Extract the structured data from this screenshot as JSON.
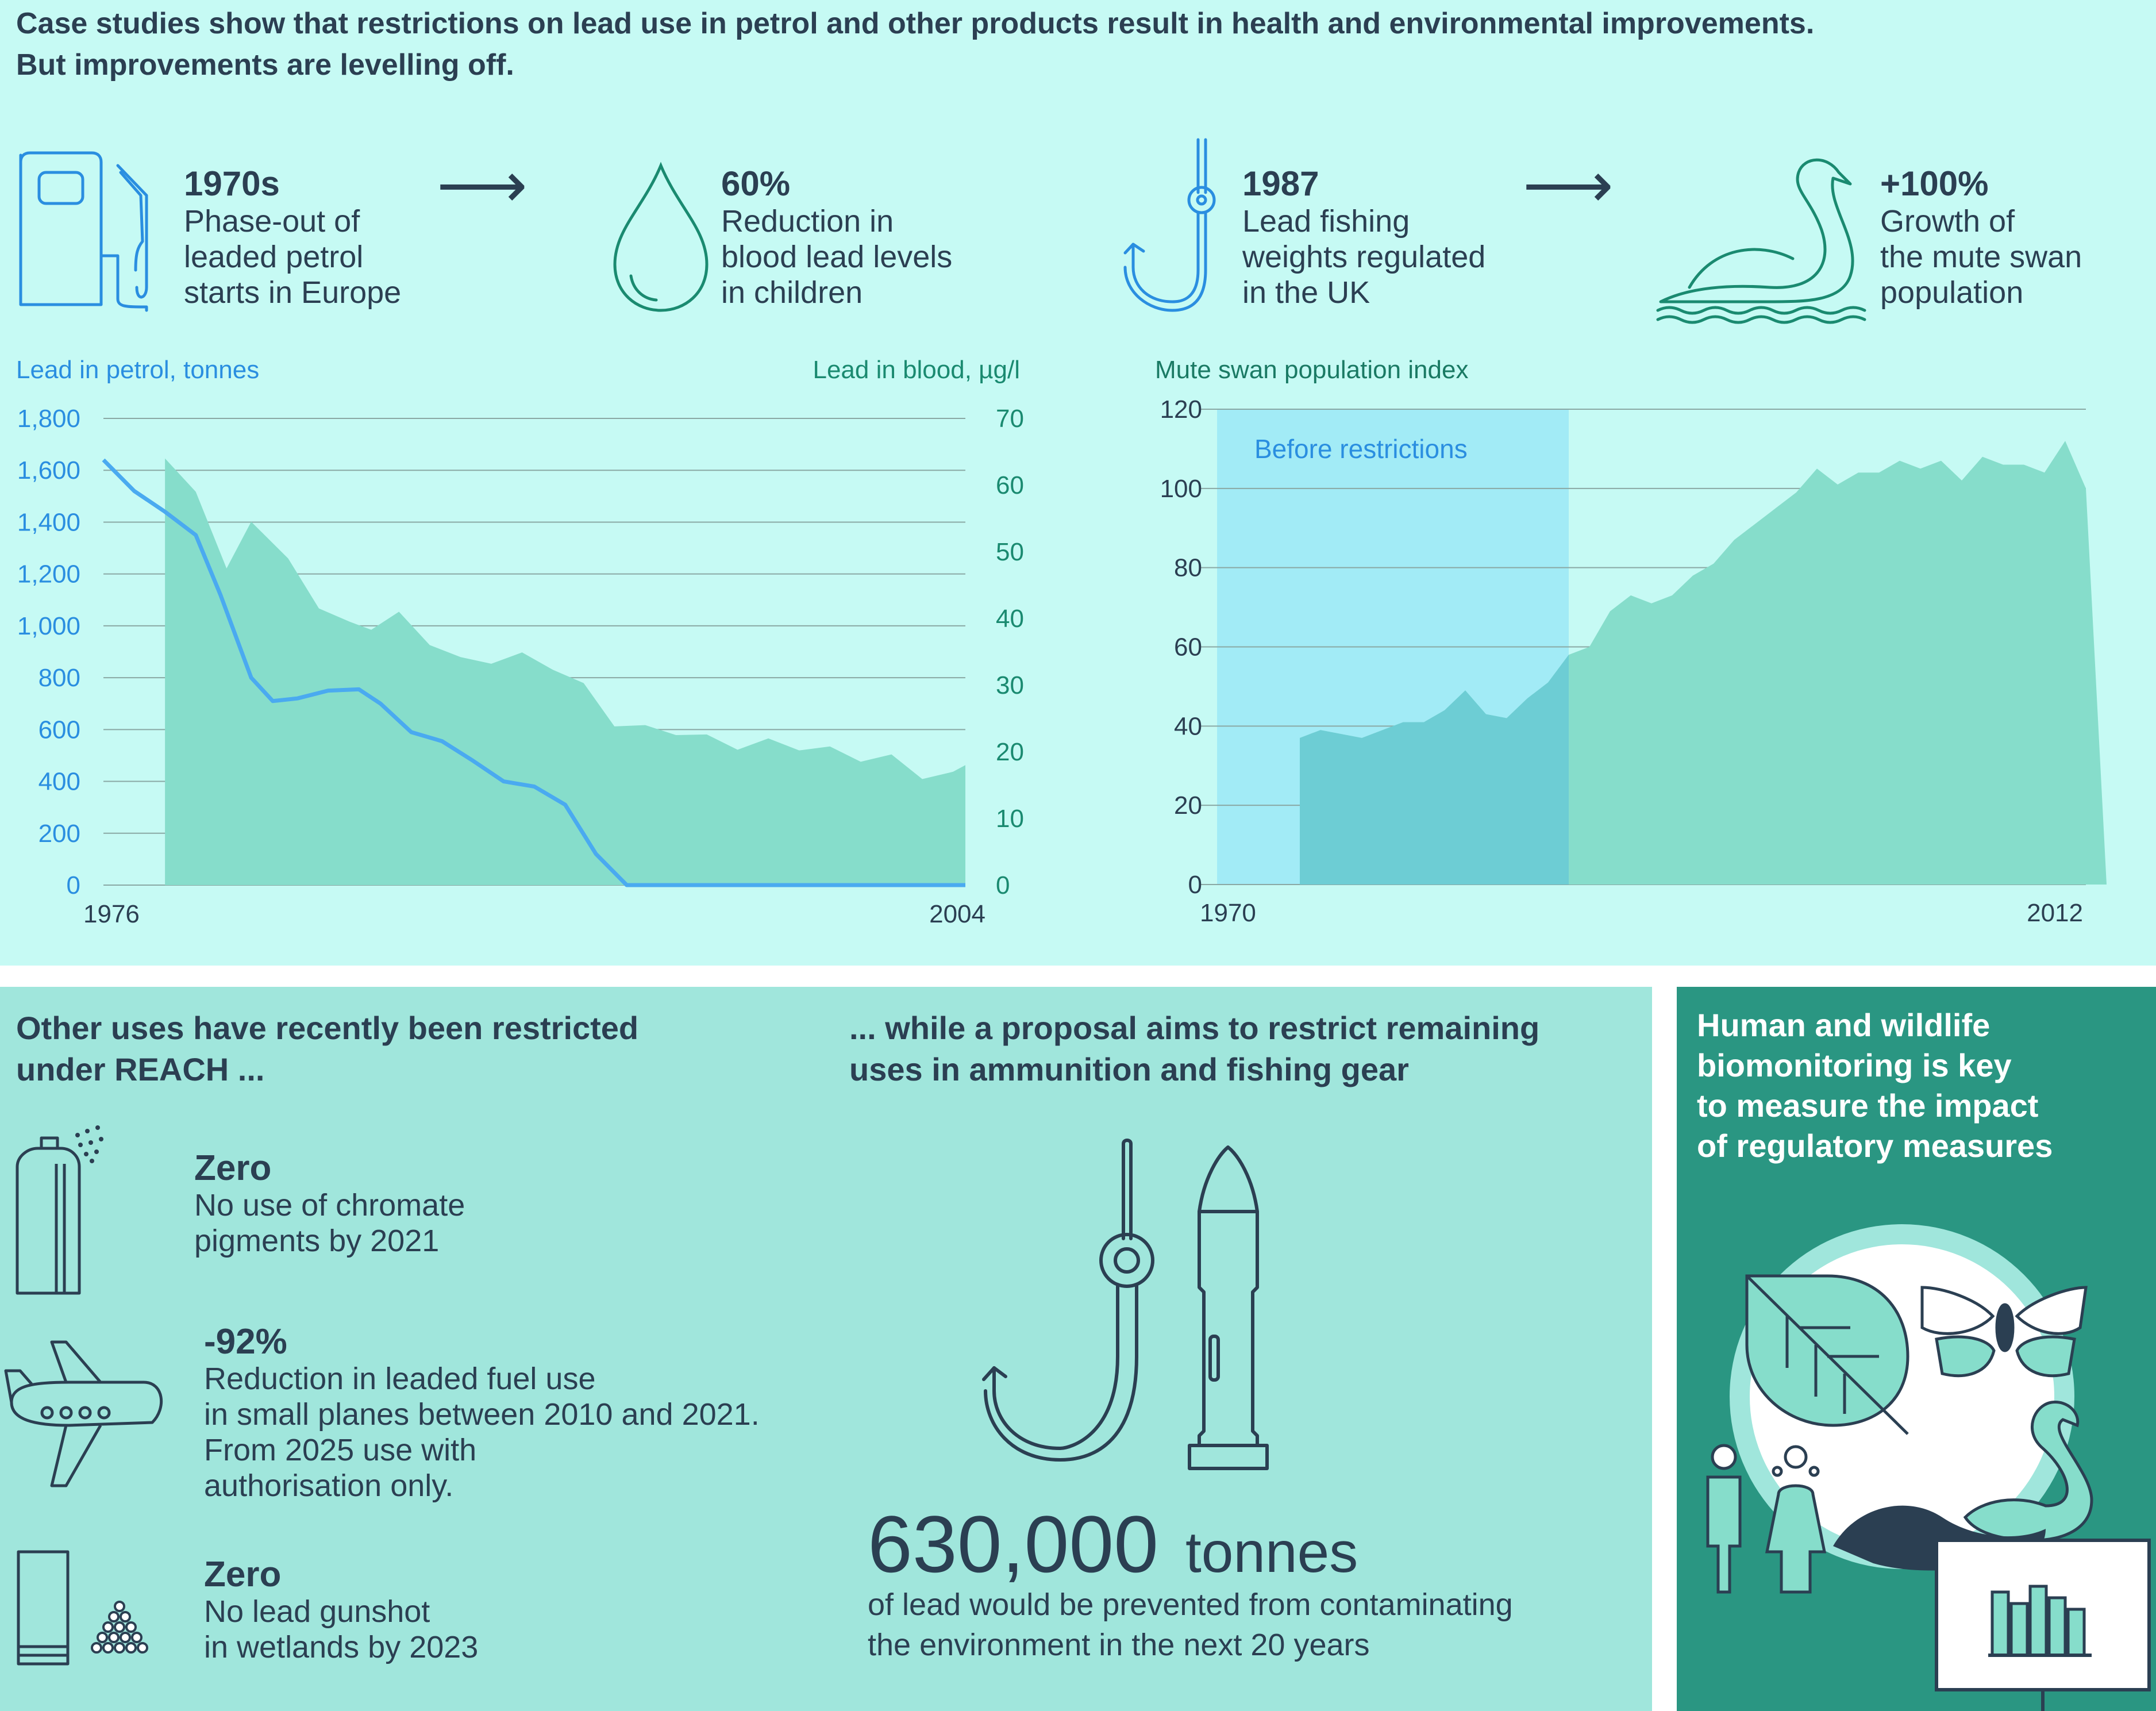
{
  "header": {
    "title_line1": "Case studies show that restrictions on lead use in petrol and other products result in health and environmental improvements.",
    "title_line2": "But improvements are levelling off."
  },
  "facts": [
    {
      "value": "1970s",
      "lines": [
        "Phase-out of",
        "leaded petrol",
        "starts in Europe"
      ],
      "icon": "fuel-pump-icon"
    },
    {
      "value": "60%",
      "lines": [
        "Reduction in",
        "blood lead levels",
        "in children"
      ],
      "icon": "drop-icon"
    },
    {
      "value": "1987",
      "lines": [
        "Lead fishing",
        "weights regulated",
        "in the UK"
      ],
      "icon": "fishing-hook-icon"
    },
    {
      "value": "+100%",
      "lines": [
        "Growth of",
        "the mute swan",
        "population"
      ],
      "icon": "swan-icon"
    }
  ],
  "chart_data": [
    {
      "type": "line",
      "left_axis_label": "Lead in petrol, tonnes",
      "right_axis_label": "Lead in blood, µg/l",
      "x_tick_labels": [
        "1976",
        "2004"
      ],
      "xlim": [
        1976,
        2004
      ],
      "y_left_ticks": [
        "0",
        "200",
        "400",
        "600",
        "800",
        "1,000",
        "1,200",
        "1,400",
        "1,600",
        "1,800"
      ],
      "y_left_lim": [
        0,
        1800
      ],
      "y_right_ticks": [
        "0",
        "10",
        "20",
        "30",
        "40",
        "50",
        "60",
        "70"
      ],
      "y_right_lim": [
        0,
        70
      ],
      "series": [
        {
          "axis": "left",
          "kind": "line",
          "color": "#4aaaf0",
          "x": [
            1976,
            1977,
            1978,
            1979,
            1979.8,
            1980.8,
            1981.5,
            1982.3,
            1983.3,
            1984.3,
            1985,
            1986,
            1987,
            1988,
            1989,
            1990,
            1991,
            1992,
            1993,
            1994,
            1995,
            1996,
            1997,
            1998,
            1999,
            2000,
            2001,
            2002,
            2003,
            2004
          ],
          "values": [
            1640,
            1520,
            1440,
            1350,
            1120,
            800,
            710,
            720,
            750,
            755,
            700,
            590,
            555,
            480,
            400,
            380,
            310,
            120,
            0,
            0,
            0,
            0,
            0,
            0,
            0,
            0,
            0,
            0,
            0,
            0
          ]
        },
        {
          "axis": "right",
          "kind": "area",
          "color": "#86ddcb",
          "x": [
            1978,
            1979,
            1980,
            1980.8,
            1982,
            1983,
            1984,
            1984.7,
            1985.6,
            1986.6,
            1987.6,
            1988.6,
            1989.6,
            1990.6,
            1991.6,
            1992.6,
            1993.6,
            1994.6,
            1995.6,
            1996.6,
            1997.6,
            1998.6,
            1999.6,
            2000.6,
            2001.6,
            2002.6,
            2003.6,
            2004
          ],
          "values": [
            64,
            59,
            47.5,
            54.5,
            49,
            41.5,
            39.5,
            38.3,
            41,
            36,
            34.2,
            33.2,
            34.9,
            32.3,
            30.3,
            23.8,
            24,
            22.5,
            22.6,
            20.3,
            22,
            20.2,
            20.8,
            18.5,
            19.6,
            15.9,
            17,
            18
          ]
        }
      ]
    },
    {
      "type": "area",
      "ylabel": "Mute swan population index",
      "x_tick_labels": [
        "1970",
        "2012"
      ],
      "xlim": [
        1970,
        2012
      ],
      "ylim": [
        0,
        120
      ],
      "y_ticks": [
        "0",
        "20",
        "40",
        "60",
        "80",
        "100",
        "120"
      ],
      "shaded_region": {
        "label": "Before restrictions",
        "x_start": 1970,
        "x_end": 1987
      },
      "series": [
        {
          "color": "#86ddcb",
          "x": [
            1974,
            1975,
            1976,
            1977,
            1978,
            1979,
            1980,
            1981,
            1982,
            1983,
            1984,
            1985,
            1986,
            1987,
            1988,
            1989,
            1990,
            1991,
            1992,
            1993,
            1994,
            1995,
            1996,
            1997,
            1998,
            1999,
            2000,
            2001,
            2002,
            2003,
            2004,
            2005,
            2006,
            2007,
            2008,
            2009,
            2010,
            2011,
            2012,
            2013
          ],
          "values": [
            37,
            39,
            38,
            37,
            39,
            41,
            41,
            44,
            49,
            43,
            42,
            47,
            51,
            58,
            60,
            69,
            73,
            71,
            73,
            78,
            81,
            87,
            91,
            95,
            99,
            105,
            101,
            104,
            104,
            107,
            105,
            107,
            102,
            108,
            106,
            106,
            104,
            112,
            100,
            0
          ]
        }
      ]
    }
  ],
  "reach_section": {
    "heading_line1": "Other uses have recently been restricted",
    "heading_line2": "under REACH ...",
    "items": [
      {
        "value": "Zero",
        "lines": [
          "No use of chromate",
          "pigments by 2021"
        ],
        "icon": "spray-can-icon"
      },
      {
        "value": "-92%",
        "lines": [
          "Reduction in leaded fuel use",
          "in small planes between 2010 and 2021.",
          "From 2025 use with",
          "authorisation only."
        ],
        "icon": "airplane-icon"
      },
      {
        "value": "Zero",
        "lines": [
          "No lead gunshot",
          "in wetlands by 2023"
        ],
        "icon": "gunshot-icon"
      }
    ]
  },
  "proposal_section": {
    "heading_line1": "... while a proposal aims to restrict remaining",
    "heading_line2": "uses in ammunition and fishing gear",
    "big_number": "630,000",
    "big_unit": "tonnes",
    "lines": [
      "of lead would be prevented from contaminating",
      "the environment in the next 20 years"
    ]
  },
  "biomonitoring": {
    "lines": [
      "Human and wildlife",
      "biomonitoring is key",
      "to measure the impact",
      "of regulatory measures"
    ]
  },
  "colors": {
    "top_bg": "#c6faf4",
    "bottom_bg": "#a0e6dc",
    "right_panel_bg": "#2a9682",
    "teal_area": "#86ddcb",
    "blue_line": "#4aaaf0",
    "shade_region": "#a2ebf6",
    "title_dark": "#2b3f52",
    "axis_blue": "#2a8ee0",
    "axis_green": "#1a8a70"
  }
}
